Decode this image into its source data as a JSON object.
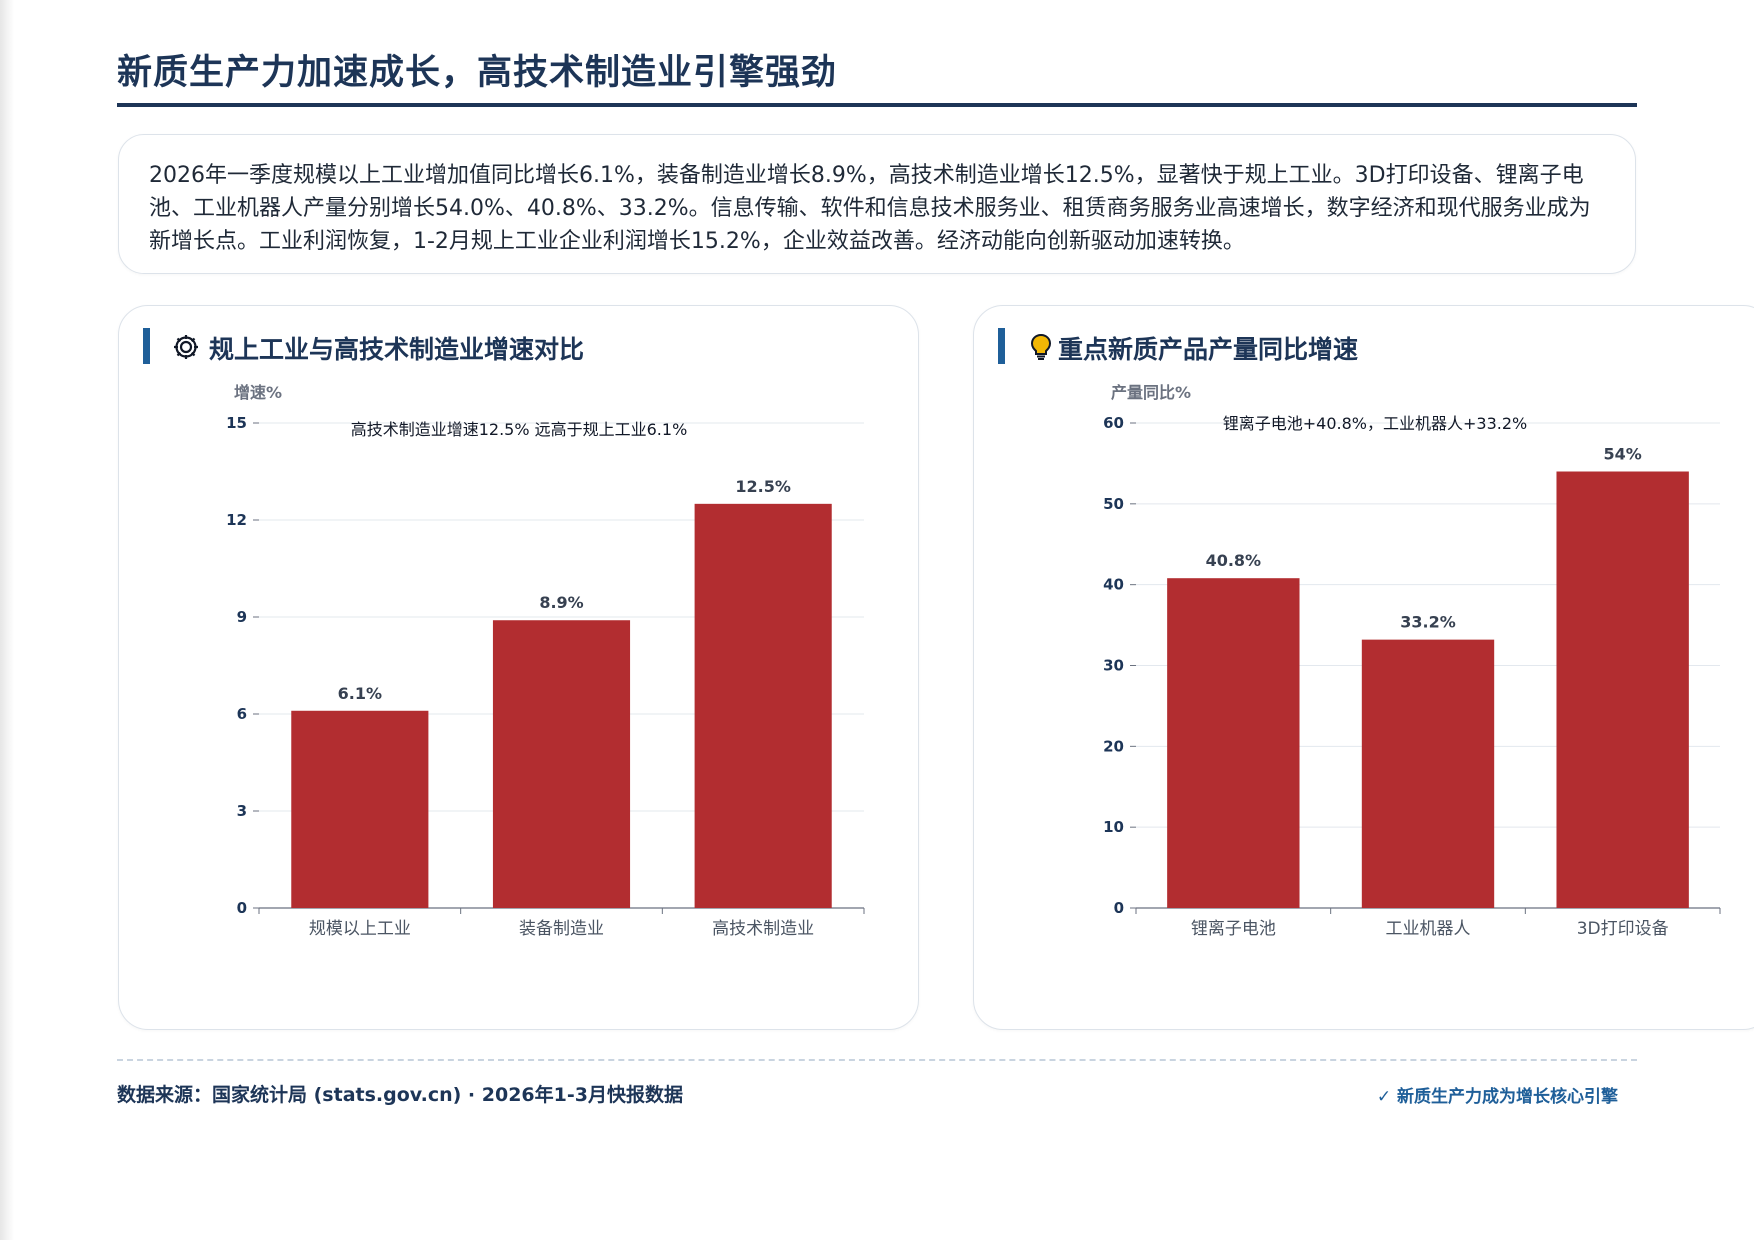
{
  "page": {
    "title": "新质生产力加速成长，高技术制造业引擎强劲",
    "summary": "2026年一季度规模以上工业增加值同比增长6.1%，装备制造业增长8.9%，高技术制造业增长12.5%，显著快于规上工业。3D打印设备、锂离子电池、工业机器人产量分别增长54.0%、40.8%、33.2%。信息传输、软件和信息技术服务业、租赁商务服务业高速增长，数字经济和现代服务业成为新增长点。工业利润恢复，1-2月规上工业企业利润增长15.2%，企业效益改善。经济动能向创新驱动加速转换。"
  },
  "cards": {
    "left_title": "规上工业与高技术制造业增速对比",
    "left_icon": "gear-icon",
    "right_title": "重点新质产品产量同比增速",
    "right_icon": "lightbulb-icon"
  },
  "chart_data": [
    {
      "type": "bar",
      "title": "规上工业与高技术制造业增速对比",
      "ylabel": "增速%",
      "categories": [
        "规模以上工业",
        "装备制造业",
        "高技术制造业"
      ],
      "values": [
        6.1,
        8.9,
        12.5
      ],
      "data_labels": [
        "6.1%",
        "8.9%",
        "12.5%"
      ],
      "ylim": [
        0,
        15
      ],
      "yticks": [
        0,
        3,
        6,
        9,
        12,
        15
      ],
      "annotation": "高技术制造业增速12.5% 远高于规上工业6.1%",
      "bar_color": "#b22d30",
      "grid": true
    },
    {
      "type": "bar",
      "title": "重点新质产品产量同比增速",
      "ylabel": "产量同比%",
      "categories": [
        "锂离子电池",
        "工业机器人",
        "3D打印设备"
      ],
      "values": [
        40.8,
        33.2,
        54
      ],
      "data_labels": [
        "40.8%",
        "33.2%",
        "54%"
      ],
      "ylim": [
        0,
        60
      ],
      "yticks": [
        0,
        10,
        20,
        30,
        40,
        50,
        60
      ],
      "annotation": "锂离子电池+40.8%，工业机器人+33.2%",
      "bar_color": "#b22d30",
      "grid": true
    }
  ],
  "footer": {
    "source": "数据来源：国家统计局 (stats.gov.cn) · 2026年1-3月快报数据",
    "badge": "✓ 新质生产力成为增长核心引擎"
  },
  "colors": {
    "title": "#1d3557",
    "accent": "#1f5f99",
    "bar": "#b22d30",
    "icon_yellow": "#f2b705"
  }
}
